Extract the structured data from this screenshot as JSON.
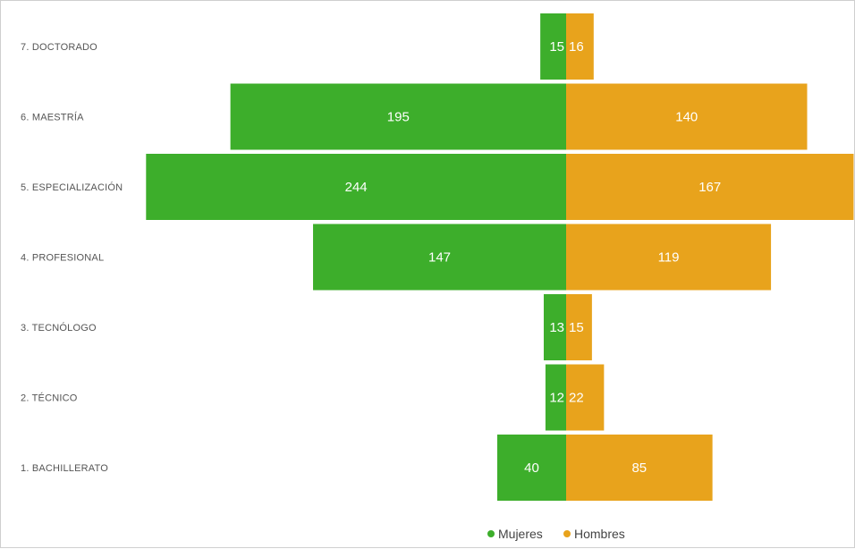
{
  "chart_data": {
    "type": "bar",
    "orientation": "horizontal-diverging",
    "categories": [
      "7. DOCTORADO",
      "6. MAESTRÍA",
      "5. ESPECIALIZACIÓN",
      "4. PROFESIONAL",
      "3. TECNÓLOGO",
      "2. TÉCNICO",
      "1. BACHILLERATO"
    ],
    "series": [
      {
        "name": "Mujeres",
        "color": "#3dae2b",
        "values": [
          15,
          195,
          244,
          147,
          13,
          12,
          40
        ]
      },
      {
        "name": "Hombres",
        "color": "#e8a31c",
        "values": [
          16,
          140,
          167,
          119,
          15,
          22,
          85
        ]
      }
    ],
    "title": "",
    "xlabel": "",
    "ylabel": "",
    "grid": false,
    "legend_position": "bottom-center"
  }
}
